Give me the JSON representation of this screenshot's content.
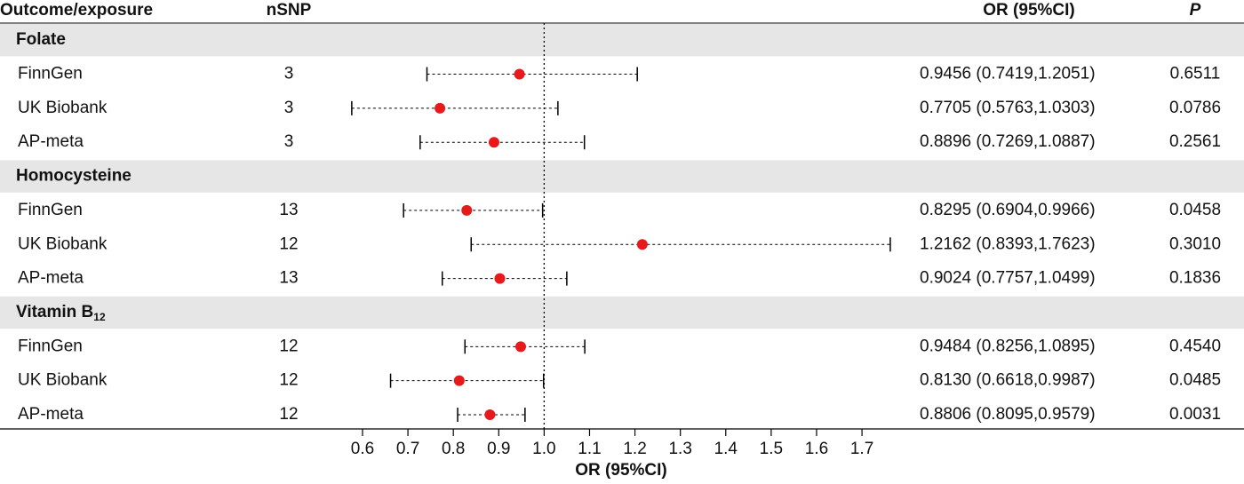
{
  "chart_data": {
    "type": "forest",
    "columns": [
      "Outcome/exposure",
      "nSNP",
      "OR (95%CI)",
      "P"
    ],
    "xlabel": "OR (95%CI)",
    "xlim": [
      0.575,
      1.765
    ],
    "xticks": [
      0.6,
      0.7,
      0.8,
      0.9,
      {
        "value": 1,
        "label": "1.0"
      },
      1.1,
      1.2,
      1.3,
      1.4,
      1.5,
      1.6,
      1.7
    ],
    "reference": 1,
    "point_color": "#e8191a",
    "groups": [
      {
        "name": "Folate",
        "rows": [
          {
            "label": "FinnGen",
            "nsnp": 3,
            "or": 0.9456,
            "lo": 0.7419,
            "hi": 1.2051,
            "ci_label": "0.9456 (0.7419,1.2051)",
            "p": "0.6511"
          },
          {
            "label": "UK Biobank",
            "nsnp": 3,
            "or": 0.7705,
            "lo": 0.5763,
            "hi": 1.0303,
            "ci_label": "0.7705 (0.5763,1.0303)",
            "p": "0.0786"
          },
          {
            "label": "AP-meta",
            "nsnp": 3,
            "or": 0.8896,
            "lo": 0.7269,
            "hi": 1.0887,
            "ci_label": "0.8896 (0.7269,1.0887)",
            "p": "0.2561"
          }
        ]
      },
      {
        "name": "Homocysteine",
        "rows": [
          {
            "label": "FinnGen",
            "nsnp": 13,
            "or": 0.8295,
            "lo": 0.6904,
            "hi": 0.9966,
            "ci_label": "0.8295 (0.6904,0.9966)",
            "p": "0.0458"
          },
          {
            "label": "UK Biobank",
            "nsnp": 12,
            "or": 1.2162,
            "lo": 0.8393,
            "hi": 1.7623,
            "ci_label": "1.2162 (0.8393,1.7623)",
            "p": "0.3010"
          },
          {
            "label": "AP-meta",
            "nsnp": 13,
            "or": 0.9024,
            "lo": 0.7757,
            "hi": 1.0499,
            "ci_label": "0.9024 (0.7757,1.0499)",
            "p": "0.1836"
          }
        ]
      },
      {
        "name": "Vitamin B",
        "name_sub": "12",
        "rows": [
          {
            "label": "FinnGen",
            "nsnp": 12,
            "or": 0.9484,
            "lo": 0.8256,
            "hi": 1.0895,
            "ci_label": "0.9484 (0.8256,1.0895)",
            "p": "0.4540"
          },
          {
            "label": "UK Biobank",
            "nsnp": 12,
            "or": 0.813,
            "lo": 0.6618,
            "hi": 0.9987,
            "ci_label": "0.8130 (0.6618,0.9987)",
            "p": "0.0485"
          },
          {
            "label": "AP-meta",
            "nsnp": 12,
            "or": 0.8806,
            "lo": 0.8095,
            "hi": 0.9579,
            "ci_label": "0.8806 (0.8095,0.9579)",
            "p": "0.0031"
          }
        ]
      }
    ]
  }
}
